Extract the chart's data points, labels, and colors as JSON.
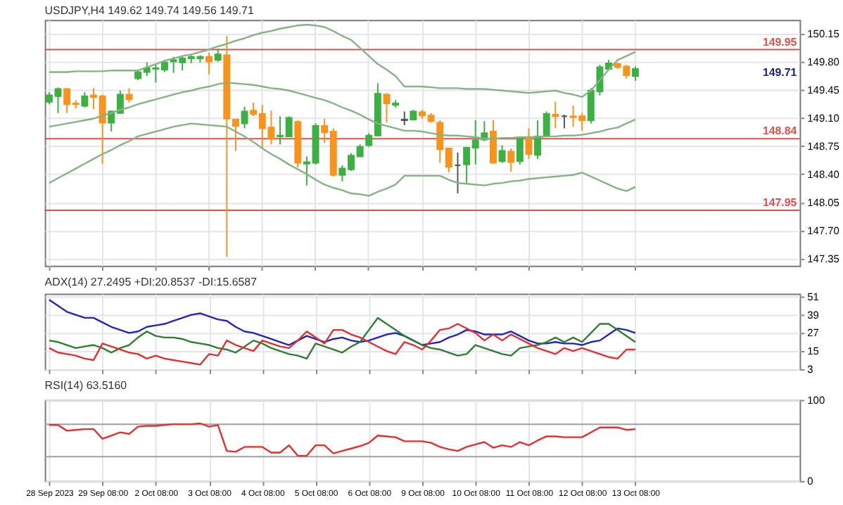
{
  "chart_data": [
    {
      "type": "candlestick",
      "title": "USDJPY,H4 149.62 149.74 149.56 149.71",
      "grid": true,
      "tick_labels": "y",
      "ohlc": [
        [
          149.3,
          149.42,
          149.27,
          149.38
        ],
        [
          149.37,
          149.48,
          149.16,
          149.46
        ],
        [
          149.46,
          149.47,
          149.16,
          149.27
        ],
        [
          149.28,
          149.32,
          149.22,
          149.27
        ],
        [
          149.25,
          149.42,
          149.23,
          149.37
        ],
        [
          149.38,
          149.47,
          149.21,
          149.36
        ],
        [
          149.37,
          149.39,
          148.53,
          149.04
        ],
        [
          149.04,
          149.19,
          148.93,
          149.18
        ],
        [
          149.16,
          149.44,
          149.15,
          149.39
        ],
        [
          149.39,
          149.47,
          149.29,
          149.33
        ],
        [
          149.59,
          149.69,
          149.57,
          149.67
        ],
        [
          149.67,
          149.79,
          149.62,
          149.72
        ],
        [
          149.71,
          149.77,
          149.54,
          149.72
        ],
        [
          149.7,
          149.82,
          149.67,
          149.79
        ],
        [
          149.8,
          149.86,
          149.66,
          149.82
        ],
        [
          149.79,
          149.86,
          149.69,
          149.84
        ],
        [
          149.84,
          149.88,
          149.78,
          149.86
        ],
        [
          149.84,
          149.88,
          149.79,
          149.86
        ],
        [
          149.86,
          149.91,
          149.64,
          149.8
        ],
        [
          149.82,
          149.96,
          149.8,
          149.89
        ],
        [
          149.88,
          150.12,
          147.37,
          149.09
        ],
        [
          149.08,
          149.09,
          148.69,
          149.0
        ],
        [
          149.03,
          149.24,
          148.97,
          149.18
        ],
        [
          149.19,
          149.29,
          149.12,
          149.15
        ],
        [
          149.15,
          149.26,
          148.73,
          148.97
        ],
        [
          148.98,
          149.19,
          148.77,
          148.84
        ],
        [
          148.87,
          149.12,
          148.77,
          148.88
        ],
        [
          148.87,
          149.12,
          148.86,
          149.1
        ],
        [
          149.05,
          149.07,
          148.48,
          148.54
        ],
        [
          148.53,
          148.62,
          148.26,
          148.55
        ],
        [
          148.54,
          149.03,
          148.52,
          149.0
        ],
        [
          149.0,
          149.09,
          148.79,
          148.92
        ],
        [
          148.93,
          148.97,
          148.37,
          148.39
        ],
        [
          148.39,
          148.51,
          148.31,
          148.47
        ],
        [
          148.46,
          148.66,
          148.44,
          148.63
        ],
        [
          148.62,
          148.77,
          148.62,
          148.74
        ],
        [
          148.76,
          148.91,
          148.74,
          148.88
        ],
        [
          148.88,
          149.53,
          148.87,
          149.4
        ],
        [
          149.39,
          149.41,
          149.04,
          149.28
        ],
        [
          149.26,
          149.32,
          149.23,
          149.28
        ],
        [
          149.07,
          149.18,
          149.01,
          149.08
        ],
        [
          149.08,
          149.2,
          149.07,
          149.18
        ],
        [
          149.17,
          149.2,
          149.09,
          149.13
        ],
        [
          149.13,
          149.16,
          149.04,
          149.06
        ],
        [
          149.04,
          149.07,
          148.54,
          148.71
        ],
        [
          148.72,
          148.73,
          148.42,
          148.49
        ],
        [
          148.51,
          148.67,
          148.16,
          148.51
        ],
        [
          148.52,
          148.74,
          148.28,
          148.73
        ],
        [
          148.73,
          149.07,
          148.52,
          148.82
        ],
        [
          148.83,
          149.06,
          148.81,
          148.91
        ],
        [
          148.93,
          149.07,
          148.53,
          148.54
        ],
        [
          148.56,
          148.76,
          148.54,
          148.69
        ],
        [
          148.68,
          148.72,
          148.43,
          148.55
        ],
        [
          148.56,
          148.87,
          148.52,
          148.86
        ],
        [
          148.86,
          148.97,
          148.59,
          148.65
        ],
        [
          148.64,
          149.07,
          148.59,
          148.87
        ],
        [
          148.87,
          149.18,
          148.86,
          149.15
        ],
        [
          149.14,
          149.3,
          148.97,
          149.12
        ],
        [
          149.12,
          149.14,
          148.97,
          149.12
        ],
        [
          149.12,
          149.25,
          148.99,
          149.11
        ],
        [
          149.12,
          149.16,
          148.94,
          149.07
        ],
        [
          149.07,
          149.47,
          149.03,
          149.44
        ],
        [
          149.43,
          149.76,
          149.38,
          149.73
        ],
        [
          149.71,
          149.82,
          149.69,
          149.78
        ],
        [
          149.77,
          149.79,
          149.71,
          149.73
        ],
        [
          149.74,
          149.76,
          149.59,
          149.63
        ],
        [
          149.62,
          149.74,
          149.56,
          149.71
        ],
        null,
        null,
        null,
        null,
        null,
        null,
        null,
        null,
        null,
        null,
        null,
        null,
        null,
        null,
        null,
        null,
        null,
        null
      ],
      "colors": [
        "#3cb043",
        "#3cb043",
        "#f7941d",
        "#f7941d",
        "#3cb043",
        "#f7941d",
        "#f7941d",
        "#3cb043",
        "#3cb043",
        "#f7941d",
        "#3cb043",
        "#3cb043",
        "#3cb043",
        "#3cb043",
        "#3cb043",
        "#3cb043",
        "#3cb043",
        "#3cb043",
        "#f7941d",
        "#3cb043",
        "#f7941d",
        "#f7941d",
        "#3cb043",
        "#f7941d",
        "#f7941d",
        "#f7941d",
        "#3cb043",
        "#3cb043",
        "#f7941d",
        "#3cb043",
        "#3cb043",
        "#f7941d",
        "#f7941d",
        "#3cb043",
        "#3cb043",
        "#3cb043",
        "#3cb043",
        "#3cb043",
        "#f7941d",
        "#3cb043",
        "#555555",
        "#3cb043",
        "#f7941d",
        "#f7941d",
        "#f7941d",
        "#f7941d",
        "#555555",
        "#3cb043",
        "#3cb043",
        "#3cb043",
        "#f7941d",
        "#3cb043",
        "#f7941d",
        "#3cb043",
        "#f7941d",
        "#3cb043",
        "#3cb043",
        "#f7941d",
        "#555555",
        "#f7941d",
        "#f7941d",
        "#3cb043",
        "#3cb043",
        "#3cb043",
        "#f7941d",
        "#f7941d",
        "#3cb043",
        null,
        null,
        null,
        null,
        null,
        null,
        null,
        null,
        null,
        null,
        null,
        null,
        null,
        null,
        null,
        null,
        null,
        null
      ],
      "series": [
        {
          "type": "line",
          "color": "#86b386",
          "values": [
            149.67,
            149.67,
            149.67,
            149.68,
            149.68,
            149.68,
            149.68,
            149.69,
            149.69,
            149.69,
            149.69,
            149.73,
            149.77,
            149.81,
            149.84,
            149.87,
            149.89,
            149.92,
            149.95,
            149.99,
            150.02,
            150.06,
            150.09,
            150.13,
            150.16,
            150.18,
            150.21,
            150.23,
            150.25,
            150.26,
            150.25,
            150.23,
            150.18,
            150.12,
            150.07,
            149.97,
            149.87,
            149.77,
            149.7,
            149.62,
            149.49,
            149.49,
            149.49,
            149.48,
            149.47,
            149.47,
            149.47,
            149.46,
            149.46,
            149.46,
            149.45,
            149.44,
            149.43,
            149.42,
            149.41,
            149.42,
            149.43,
            149.44,
            149.41,
            149.39,
            149.36,
            149.44,
            149.57,
            149.7,
            149.82,
            149.87,
            149.92,
            null,
            null,
            null,
            null,
            null,
            null,
            null,
            null,
            null,
            null,
            null,
            null,
            null,
            null,
            null,
            null,
            null,
            null
          ]
        },
        {
          "type": "line",
          "color": "#86b386",
          "values": [
            148.99,
            149.01,
            149.03,
            149.05,
            149.07,
            149.09,
            149.13,
            149.16,
            149.2,
            149.23,
            149.27,
            149.3,
            149.33,
            149.36,
            149.39,
            149.42,
            149.44,
            149.47,
            149.49,
            149.52,
            149.54,
            149.53,
            149.52,
            149.51,
            149.49,
            149.47,
            149.46,
            149.44,
            149.41,
            149.38,
            149.35,
            149.32,
            149.28,
            149.23,
            149.19,
            149.14,
            149.08,
            149.03,
            149.0,
            148.97,
            148.94,
            148.94,
            148.93,
            148.91,
            148.89,
            148.88,
            148.88,
            148.87,
            148.86,
            148.84,
            148.84,
            148.85,
            148.85,
            148.86,
            148.86,
            148.86,
            148.87,
            148.87,
            148.88,
            148.88,
            148.89,
            148.91,
            148.93,
            148.96,
            148.98,
            149.03,
            149.08,
            null,
            null,
            null,
            null,
            null,
            null,
            null,
            null,
            null,
            null,
            null,
            null,
            null,
            null,
            null,
            null,
            null,
            null
          ]
        },
        {
          "type": "line",
          "color": "#86b386",
          "values": [
            148.29,
            148.35,
            148.41,
            148.47,
            148.53,
            148.59,
            148.65,
            148.7,
            148.76,
            148.81,
            148.87,
            148.9,
            148.93,
            148.96,
            148.99,
            149.01,
            149.03,
            149.02,
            149.01,
            149.0,
            148.99,
            148.93,
            148.87,
            148.8,
            148.72,
            148.65,
            148.59,
            148.52,
            148.46,
            148.4,
            148.33,
            148.27,
            148.23,
            148.2,
            148.16,
            148.15,
            148.13,
            148.18,
            148.22,
            148.27,
            148.38,
            148.38,
            148.38,
            148.38,
            148.38,
            148.33,
            148.29,
            148.28,
            148.27,
            148.26,
            148.28,
            148.29,
            148.31,
            148.32,
            148.34,
            148.35,
            148.36,
            148.37,
            148.38,
            148.39,
            148.42,
            148.37,
            148.32,
            148.27,
            148.22,
            148.19,
            148.24,
            null,
            null,
            null,
            null,
            null,
            null,
            null,
            null,
            null,
            null,
            null,
            null,
            null,
            null,
            null,
            null,
            null,
            null
          ]
        }
      ],
      "ylim": [
        147.26,
        150.32
      ],
      "yticks": [
        {
          "value": 150.15,
          "label": "150.15"
        },
        {
          "value": 149.8,
          "label": "149.80"
        },
        {
          "value": 149.45,
          "label": "149.45"
        },
        {
          "value": 149.1,
          "label": "149.10"
        },
        {
          "value": 148.75,
          "label": "148.75"
        },
        {
          "value": 148.4,
          "label": "148.40"
        },
        {
          "value": 148.05,
          "label": "148.05"
        },
        {
          "value": 147.7,
          "label": "147.70"
        },
        {
          "value": 147.35,
          "label": "147.35"
        }
      ],
      "ref_lines": [
        {
          "axis": "y",
          "value": 149.95,
          "label": "149.95",
          "color": "#d9534f"
        },
        {
          "axis": "y",
          "value": 148.84,
          "label": "148.84",
          "color": "#d9534f"
        },
        {
          "axis": "y",
          "value": 147.95,
          "label": "147.95",
          "color": "#d9534f"
        }
      ],
      "annotations": [
        "149.71"
      ]
    },
    {
      "type": "line",
      "title": "ADX(14) 27.2495 +DI:20.8537 -DI:15.6587",
      "grid": true,
      "tick_labels": "y",
      "series": [
        {
          "color": "#2424b8",
          "values": [
            49,
            45,
            41,
            39,
            37,
            37,
            34,
            31,
            29,
            27,
            28,
            31,
            32,
            33,
            35,
            37,
            39,
            40,
            38,
            36,
            35,
            31,
            28,
            27,
            25,
            23,
            21,
            19,
            22,
            25,
            23,
            21,
            23,
            24,
            22,
            21,
            22,
            24,
            26,
            27,
            25,
            22,
            19,
            20,
            21,
            24,
            26,
            29,
            28,
            26,
            26,
            26,
            28,
            25,
            22,
            20,
            20,
            21,
            20,
            20,
            19,
            21,
            22,
            26,
            30,
            29,
            27,
            null,
            null,
            null,
            null,
            null,
            null,
            null,
            null,
            null,
            null,
            null,
            null,
            null,
            null,
            null,
            null,
            null,
            null
          ]
        },
        {
          "color": "#2e7d32",
          "values": [
            22,
            21,
            19,
            17,
            18,
            19,
            17,
            14,
            17,
            19,
            24,
            28,
            25,
            24,
            24,
            23,
            21,
            20,
            19,
            17,
            16,
            14,
            18,
            22,
            20,
            17,
            15,
            13,
            12,
            10,
            20,
            18,
            16,
            14,
            18,
            21,
            29,
            37,
            33,
            29,
            25,
            22,
            19,
            17,
            16,
            14,
            12,
            13,
            19,
            17,
            15,
            13,
            12,
            17,
            18,
            19,
            21,
            24,
            21,
            24,
            21,
            27,
            33,
            33,
            29,
            25,
            21,
            null,
            null,
            null,
            null,
            null,
            null,
            null,
            null,
            null,
            null,
            null,
            null,
            null,
            null,
            null,
            null,
            null,
            null
          ]
        },
        {
          "color": "#e03030",
          "values": [
            17,
            14,
            13,
            12,
            10,
            9,
            20,
            18,
            16,
            14,
            13,
            10,
            12,
            10,
            9,
            8,
            7,
            6,
            13,
            12,
            22,
            19,
            17,
            15,
            22,
            20,
            18,
            17,
            22,
            28,
            24,
            20,
            29,
            29,
            26,
            24,
            21,
            18,
            15,
            13,
            21,
            19,
            16,
            22,
            29,
            30,
            33,
            30,
            27,
            22,
            26,
            22,
            26,
            23,
            20,
            17,
            15,
            13,
            17,
            15,
            17,
            15,
            13,
            11,
            10,
            16,
            16,
            null,
            null,
            null,
            null,
            null,
            null,
            null,
            null,
            null,
            null,
            null,
            null,
            null,
            null,
            null,
            null,
            null,
            null
          ]
        }
      ],
      "ylim": [
        3,
        53
      ],
      "yticks": [
        51,
        39,
        27,
        15,
        3
      ]
    },
    {
      "type": "line",
      "title": "RSI(14) 63.5160",
      "grid": true,
      "categories": [
        "28 Sep 2023",
        null,
        null,
        null,
        null,
        null,
        "29 Sep 08:00",
        null,
        null,
        null,
        null,
        null,
        "2 Oct 08:00",
        null,
        null,
        null,
        null,
        null,
        "3 Oct 08:00",
        null,
        null,
        null,
        null,
        null,
        "4 Oct 08:00",
        null,
        null,
        null,
        null,
        null,
        "5 Oct 08:00",
        null,
        null,
        null,
        null,
        null,
        "6 Oct 08:00",
        null,
        null,
        null,
        null,
        null,
        "9 Oct 08:00",
        null,
        null,
        null,
        null,
        null,
        "10 Oct 08:00",
        null,
        null,
        null,
        null,
        null,
        "11 Oct 08:00",
        null,
        null,
        null,
        null,
        null,
        "12 Oct 08:00",
        null,
        null,
        null,
        null,
        null,
        "13 Oct 08:00",
        null,
        null,
        null,
        null,
        null,
        null,
        null,
        null,
        null,
        null,
        null,
        null,
        null,
        null,
        null,
        null,
        null,
        null
      ],
      "series": [
        {
          "color": "#e03030",
          "values": [
            69,
            69,
            62,
            63,
            64,
            64,
            52,
            56,
            60,
            58,
            67,
            68,
            68,
            69,
            70,
            70,
            70,
            71,
            67,
            69,
            37,
            36,
            42,
            42,
            42,
            35,
            35,
            44,
            31,
            31,
            44,
            44,
            34,
            37,
            40,
            43,
            47,
            56,
            55,
            54,
            49,
            49,
            49,
            47,
            42,
            39,
            37,
            42,
            45,
            48,
            41,
            44,
            42,
            48,
            44,
            50,
            55,
            55,
            54,
            54,
            54,
            60,
            66,
            66,
            66,
            63,
            64,
            null,
            null,
            null,
            null,
            null,
            null,
            null,
            null,
            null,
            null,
            null,
            null,
            null,
            null,
            null,
            null,
            null,
            null
          ]
        }
      ],
      "ylim": [
        0,
        100
      ],
      "yticks": [
        100,
        0
      ],
      "ref_lines": [
        {
          "axis": "y",
          "value": 70,
          "color": "#a0a0a0"
        },
        {
          "axis": "y",
          "value": 30,
          "color": "#a0a0a0"
        }
      ]
    }
  ]
}
